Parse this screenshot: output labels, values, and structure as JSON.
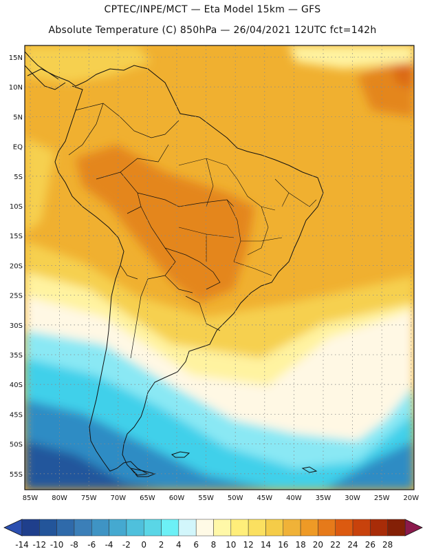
{
  "header": {
    "line1": "CPTEC/INPE/MCT —  Eta Model 15km — GFS",
    "line2": "Absolute Temperature (C) 850hPa — 26/04/2021 12UTC fct=142h"
  },
  "axes": {
    "lat_labels": [
      "15N",
      "10N",
      "5N",
      "EQ",
      "5S",
      "10S",
      "15S",
      "20S",
      "25S",
      "30S",
      "35S",
      "40S",
      "45S",
      "50S",
      "55S"
    ],
    "lon_labels": [
      "85W",
      "80W",
      "75W",
      "70W",
      "65W",
      "60W",
      "55W",
      "50W",
      "45W",
      "40W",
      "35W",
      "30W",
      "25W",
      "20W"
    ]
  },
  "colorbar": {
    "labels": [
      "-14",
      "-12",
      "-10",
      "-8",
      "-6",
      "-4",
      "-2",
      "0",
      "2",
      "4",
      "6",
      "8",
      "10",
      "12",
      "14",
      "16",
      "18",
      "20",
      "22",
      "24",
      "26",
      "28"
    ],
    "colors": [
      "#1f3f8c",
      "#23559a",
      "#2f6aaa",
      "#3b7fb8",
      "#3f94c4",
      "#45a9d0",
      "#4fc0dc",
      "#5ad6e6",
      "#6cf0f6",
      "#d2f6fb",
      "#fffae6",
      "#fff8a8",
      "#ffee7a",
      "#fbe060",
      "#f5cc48",
      "#f0b238",
      "#ee9a26",
      "#e67a1a",
      "#dc5a10",
      "#c8420c",
      "#a82c08",
      "#842006"
    ],
    "low_color": "#2b4fb0",
    "high_color": "#8b1a4c"
  },
  "map_colors": {
    "ocean_north": "#f0b030",
    "warm_core": "#e4861e",
    "hot_spot": "#dc6a14",
    "yellow": "#f6d050",
    "light_yellow": "#fff3a0",
    "cream": "#fff8e4",
    "cyan_light": "#8ae8f4",
    "cyan": "#3fd0ea",
    "blue": "#2f8cc4",
    "deep_blue": "#23569c"
  }
}
